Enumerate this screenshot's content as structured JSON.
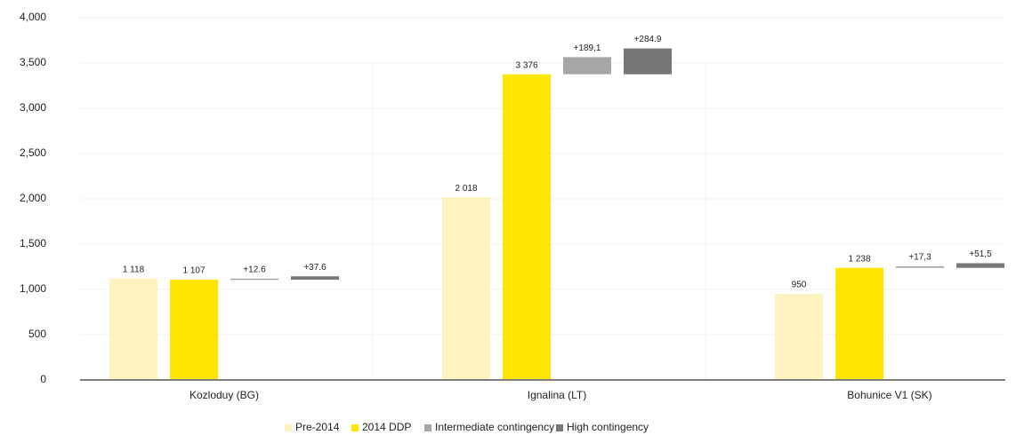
{
  "chart_data": {
    "type": "floating_bar",
    "categories": [
      "Kozloduy (BG)",
      "Ignalina (LT)",
      "Bohunice V1 (SK)"
    ],
    "series": [
      {
        "name": "Pre-2014",
        "color": "#fff3bf",
        "values": [
          1118,
          2018,
          950
        ],
        "value_labels": [
          "1 118",
          "2 018",
          "950"
        ]
      },
      {
        "name": "2014 DDP",
        "color": "#ffe600",
        "values": [
          1107,
          3376,
          1238
        ],
        "value_labels": [
          "1 107",
          "3 376",
          "1 238"
        ]
      },
      {
        "name": "Intermediate contingency",
        "color": "#a6a6a6",
        "base": "2014 DDP",
        "values": [
          12.6,
          189.1,
          17.3
        ],
        "value_labels": [
          "+12.6",
          "+189,1",
          "+17,3"
        ]
      },
      {
        "name": "High contingency",
        "color": "#777777",
        "base": "2014 DDP",
        "values": [
          37.6,
          284.9,
          51.5
        ],
        "value_labels": [
          "+37.6",
          "+284.9",
          "+51,5"
        ]
      }
    ],
    "ylim": [
      0,
      4000
    ],
    "yticks": [
      0,
      500,
      {
        "value": 1000,
        "label": "1,000"
      },
      {
        "value": 1500,
        "label": "1,500"
      },
      {
        "value": 2000,
        "label": "2,000"
      },
      {
        "value": 2500,
        "label": "2,500"
      },
      {
        "value": 3000,
        "label": "3,000"
      },
      {
        "value": 3500,
        "label": "3,500"
      },
      {
        "value": 4000,
        "label": "4,000"
      }
    ],
    "grid": true,
    "legend": "bottom"
  }
}
